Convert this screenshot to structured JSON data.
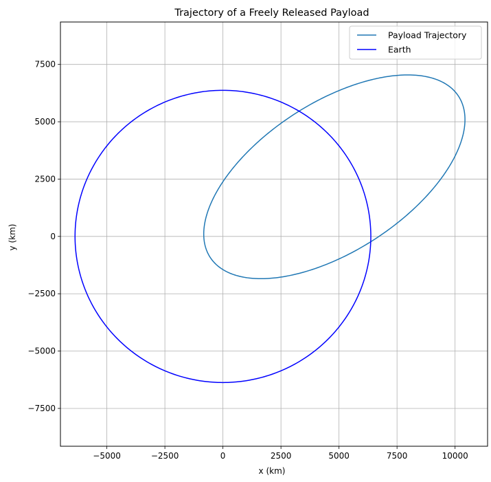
{
  "chart_data": {
    "type": "line",
    "title": "Trajectory of a Freely Released Payload",
    "xlabel": "x (km)",
    "ylabel": "y (km)",
    "xlim": [
      -7000,
      11400
    ],
    "ylim": [
      -9150,
      9350
    ],
    "xticks": [
      -5000,
      -2500,
      0,
      2500,
      5000,
      7500,
      10000
    ],
    "yticks": [
      -7500,
      -5000,
      -2500,
      0,
      2500,
      5000,
      7500
    ],
    "grid": true,
    "legend_position": "top-right",
    "series": [
      {
        "name": "Payload Trajectory",
        "color": "#1f77b4",
        "ellipse": {
          "center": [
            4800,
            2600
          ],
          "semi_major": 6400,
          "semi_minor": 3230,
          "rotation_deg": 33.5
        }
      },
      {
        "name": "Earth",
        "color": "#0000ff",
        "circle": {
          "center": [
            0,
            0
          ],
          "radius": 6371
        }
      }
    ]
  }
}
